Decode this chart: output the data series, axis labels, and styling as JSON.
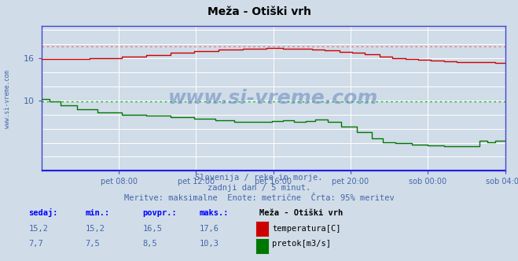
{
  "title": "Meža - Otiški vrh",
  "bg_color": "#d0dce8",
  "plot_bg_color": "#d0dce8",
  "grid_color": "#ffffff",
  "axis_color": "#4444cc",
  "text_color": "#4466aa",
  "subtitle_lines": [
    "Slovenija / reke in morje.",
    "zadnji dan / 5 minut.",
    "Meritve: maksimalne  Enote: metrične  Črta: 95% meritev"
  ],
  "xlabel_ticks": [
    "pet 08:00",
    "pet 12:00",
    "pet 16:00",
    "pet 20:00",
    "sob 00:00",
    "sob 04:00"
  ],
  "xtick_pos": [
    48,
    96,
    144,
    192,
    240,
    288
  ],
  "temp_color": "#cc0000",
  "flow_color": "#007700",
  "temp_ref_color": "#ff6666",
  "flow_ref_color": "#00aa00",
  "ylim": [
    0,
    20.5
  ],
  "yticks": [
    10,
    16
  ],
  "yticklabels": [
    "10",
    "16"
  ],
  "temp_ref": 17.6,
  "flow_ref": 9.8,
  "watermark": "www.si-vreme.com",
  "watermark_color": "#6688bb",
  "table_headers": [
    "sedaj:",
    "min.:",
    "povpr.:",
    "maks.:"
  ],
  "table_row1": [
    "15,2",
    "15,2",
    "16,5",
    "17,6"
  ],
  "table_row2": [
    "7,7",
    "7,5",
    "8,5",
    "10,3"
  ],
  "station_name": "Meža - Otiški vrh",
  "legend_temp": "temperatura[C]",
  "legend_flow": "pretok[m3/s]",
  "legend_temp_color": "#cc0000",
  "legend_flow_color": "#007700"
}
